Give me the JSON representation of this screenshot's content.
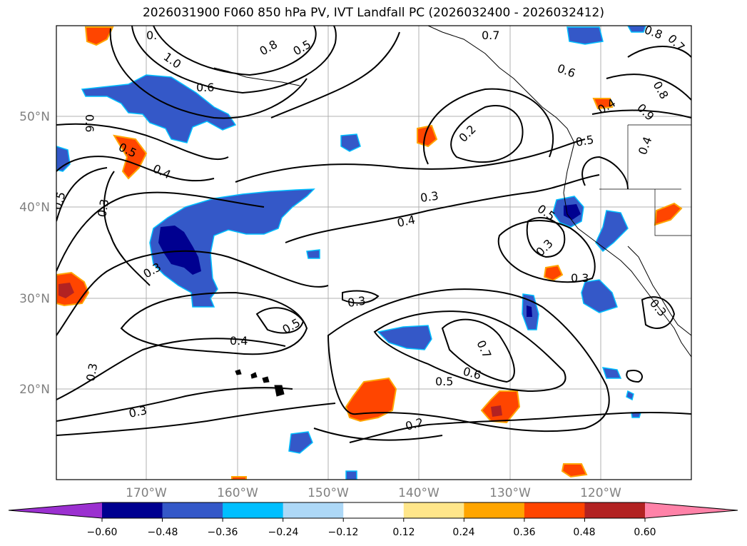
{
  "title": "2026031900 F060 850 hPa PV, IVT Landfall PC (2026032400 - 2026032412)",
  "map": {
    "lat_labels": [
      "50°N",
      "40°N",
      "30°N",
      "20°N"
    ],
    "lon_labels": [
      "170°W",
      "160°W",
      "150°W",
      "140°W",
      "130°W",
      "120°W"
    ],
    "contour_labels": [
      {
        "text": "0.",
        "id": "c1"
      },
      {
        "text": "1.0",
        "id": "c2"
      },
      {
        "text": "0.6",
        "id": "c3"
      },
      {
        "text": "0.8",
        "id": "c4"
      },
      {
        "text": "0.5",
        "id": "c5"
      },
      {
        "text": "0.7",
        "id": "c6"
      },
      {
        "text": "0.6",
        "id": "c7"
      },
      {
        "text": "0.8",
        "id": "c8"
      },
      {
        "text": "0.8",
        "id": "c9"
      },
      {
        "text": "0.7",
        "id": "c10"
      },
      {
        "text": "0.9",
        "id": "c11"
      },
      {
        "text": "0.6",
        "id": "c12"
      },
      {
        "text": "0.5",
        "id": "c13"
      },
      {
        "text": "0.4",
        "id": "c14"
      },
      {
        "text": "0.5",
        "id": "c15"
      },
      {
        "text": "0.3",
        "id": "c16"
      },
      {
        "text": "0.2",
        "id": "c17"
      },
      {
        "text": "0.3",
        "id": "c18"
      },
      {
        "text": "0.4",
        "id": "c19"
      },
      {
        "text": "0.5",
        "id": "c20"
      },
      {
        "text": "0.3",
        "id": "c21"
      },
      {
        "text": "0.3",
        "id": "c22"
      },
      {
        "text": "0.3",
        "id": "c23"
      },
      {
        "text": "0.5",
        "id": "c24"
      },
      {
        "text": "0.4",
        "id": "c25"
      },
      {
        "text": "0.7",
        "id": "c26"
      },
      {
        "text": "0.6",
        "id": "c27"
      },
      {
        "text": "0.5",
        "id": "c28"
      },
      {
        "text": "0.3",
        "id": "c29"
      },
      {
        "text": "0.3",
        "id": "c30"
      },
      {
        "text": "0.2",
        "id": "c31"
      },
      {
        "text": "0.5",
        "id": "c32"
      },
      {
        "text": "0.3",
        "id": "c33"
      },
      {
        "text": "0.4",
        "id": "c34"
      },
      {
        "text": "0.4",
        "id": "c35"
      },
      {
        "text": "0.3",
        "id": "c36"
      }
    ]
  },
  "colorbar": {
    "ticks": [
      "−0.60",
      "−0.48",
      "−0.36",
      "−0.24",
      "−0.12",
      "0.12",
      "0.24",
      "0.36",
      "0.48",
      "0.60"
    ],
    "colors": [
      "#9b30d0",
      "#000090",
      "#3458c8",
      "#00bfff",
      "#add8f7",
      "#ffffff",
      "#ffe68a",
      "#ffa500",
      "#ff4500",
      "#b22222",
      "#ff82a8"
    ]
  }
}
